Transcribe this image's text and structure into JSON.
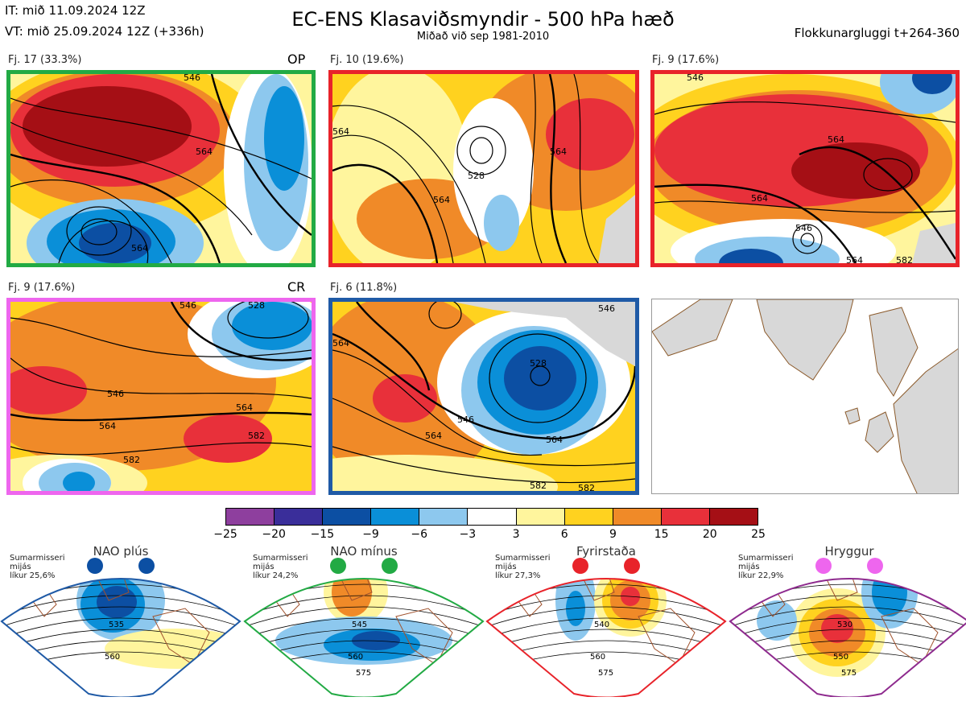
{
  "header": {
    "it": "IT: mið 11.09.2024 12Z",
    "vt": "VT: mið 25.09.2024 12Z  (+336h)",
    "title": "EC-ENS Klasaviðsmyndir - 500 hPa hæð",
    "subtitle": "Miðað við sep 1981-2010",
    "window": "Flokkunargluggi t+264-360"
  },
  "panels": [
    {
      "label": "Fj. 17 (33.3%)",
      "tag": "OP",
      "border": "#22aa44",
      "contours": [
        "546",
        "564",
        "564"
      ]
    },
    {
      "label": "Fj. 10 (19.6%)",
      "tag": "",
      "border": "#e8232a",
      "contours": [
        "564",
        "564",
        "528",
        "564"
      ]
    },
    {
      "label": "Fj. 9 (17.6%)",
      "tag": "",
      "border": "#e8232a",
      "contours": [
        "546",
        "564",
        "564",
        "546",
        "564",
        "582"
      ]
    },
    {
      "label": "Fj. 9 (17.6%)",
      "tag": "CR",
      "border": "#ee66ee",
      "contours": [
        "546",
        "546",
        "564",
        "564",
        "582",
        "582",
        "528"
      ]
    },
    {
      "label": "Fj. 6 (11.8%)",
      "tag": "",
      "border": "#1f5aa6",
      "contours": [
        "564",
        "528",
        "546",
        "564",
        "564",
        "582",
        "546",
        "582"
      ]
    }
  ],
  "colorbar": {
    "colors": [
      "#8e3f9e",
      "#3a2e9a",
      "#0c4fa3",
      "#0a8fd8",
      "#8dc8ee",
      "#ffffff",
      "#fff59d",
      "#ffd21f",
      "#f08a28",
      "#e8303a",
      "#a50f15"
    ],
    "labels": [
      "−25",
      "−20",
      "−15",
      "−9",
      "−6",
      "−3",
      "3",
      "6",
      "9",
      "15",
      "20",
      "25"
    ]
  },
  "regimes": [
    {
      "name": "NAO plús",
      "dot_color": "#0c4fa3",
      "border": "#1f5aa6",
      "line1": "Sumarmisseri",
      "line2": "mijás",
      "line3": "líkur 25,6%",
      "contours": [
        "535",
        "560"
      ]
    },
    {
      "name": "NAO mínus",
      "dot_color": "#22aa44",
      "border": "#22aa44",
      "line1": "Sumarmisseri",
      "line2": "mijás",
      "line3": "líkur 24,2%",
      "contours": [
        "545",
        "560",
        "575"
      ]
    },
    {
      "name": "Fyrirstaða",
      "dot_color": "#e8232a",
      "border": "#e8232a",
      "line1": "Sumarmisseri",
      "line2": "mijás",
      "line3": "líkur 27,3%",
      "contours": [
        "540",
        "560",
        "575"
      ]
    },
    {
      "name": "Hryggur",
      "dot_color": "#ee66ee",
      "border": "#8e2a8e",
      "line1": "Sumarmisseri",
      "line2": "mijás",
      "line3": "líkur 22,9%",
      "contours": [
        "530",
        "550",
        "575"
      ]
    }
  ]
}
